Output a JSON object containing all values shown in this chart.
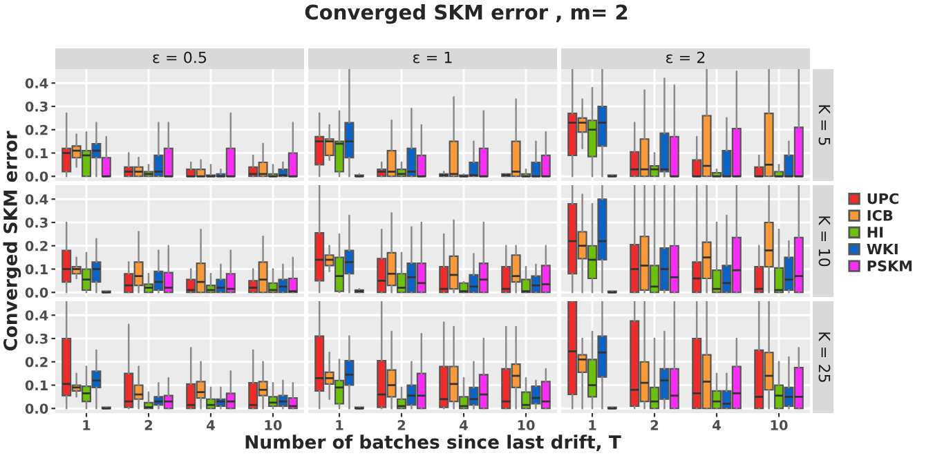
{
  "chart_data": [
    {
      "type": "other",
      "title": "Converged SKM error , m= 2"
    },
    {
      "type": "box",
      "title": "ε = 0.5",
      "legend": "right",
      "categories": [
        "1",
        "2",
        "4",
        "10"
      ],
      "ylim": [
        -0.02,
        0.46
      ],
      "yticks": [
        {
          "value": 0,
          "label": "0.0"
        },
        {
          "value": 0.1,
          "label": "0.1"
        },
        {
          "value": 0.2,
          "label": "0.2"
        },
        {
          "value": 0.3,
          "label": "0.3"
        },
        {
          "value": 0.4,
          "label": "0.4"
        }
      ],
      "grid": true,
      "tick_labels": "y",
      "series": [
        {
          "name": "UPC",
          "color": "#f02b2b",
          "boxes": [
            {
              "low": 0,
              "q1": 0.02,
              "median": 0.1,
              "q3": 0.12,
              "high": 0.27
            },
            {
              "low": 0,
              "q1": 0,
              "median": 0.02,
              "q3": 0.04,
              "high": 0.1
            },
            {
              "low": 0,
              "q1": 0,
              "median": 0,
              "q3": 0.03,
              "high": 0.06
            },
            {
              "low": 0,
              "q1": 0,
              "median": 0.01,
              "q3": 0.04,
              "high": 0.09
            }
          ]
        },
        {
          "name": "ICB",
          "color": "#f99a3a",
          "boxes": [
            {
              "low": 0.04,
              "q1": 0.08,
              "median": 0.11,
              "q3": 0.13,
              "high": 0.18
            },
            {
              "low": 0,
              "q1": 0,
              "median": 0.02,
              "q3": 0.04,
              "high": 0.08
            },
            {
              "low": 0,
              "q1": 0,
              "median": 0,
              "q3": 0.03,
              "high": 0.07
            },
            {
              "low": 0,
              "q1": 0,
              "median": 0.01,
              "q3": 0.06,
              "high": 0.14
            }
          ]
        },
        {
          "name": "HI",
          "color": "#6cc10c",
          "boxes": [
            {
              "low": 0,
              "q1": 0,
              "median": 0.09,
              "q3": 0.11,
              "high": 0.19
            },
            {
              "low": 0,
              "q1": 0,
              "median": 0.01,
              "q3": 0.02,
              "high": 0.05
            },
            {
              "low": 0,
              "q1": 0,
              "median": 0,
              "q3": 0.005,
              "high": 0.05
            },
            {
              "low": 0,
              "q1": 0,
              "median": 0,
              "q3": 0.01,
              "high": 0.05
            }
          ]
        },
        {
          "name": "WKI",
          "color": "#0a64c8",
          "boxes": [
            {
              "low": 0,
              "q1": 0.08,
              "median": 0.11,
              "q3": 0.14,
              "high": 0.23
            },
            {
              "low": 0,
              "q1": 0,
              "median": 0.02,
              "q3": 0.09,
              "high": 0.23
            },
            {
              "low": 0,
              "q1": 0,
              "median": 0,
              "q3": 0.01,
              "high": 0.03
            },
            {
              "low": 0,
              "q1": 0,
              "median": 0.005,
              "q3": 0.03,
              "high": 0.06
            }
          ]
        },
        {
          "name": "PSKM",
          "color": "#fb2cf5",
          "boxes": [
            {
              "low": 0,
              "q1": 0,
              "median": 0,
              "q3": 0.08,
              "high": 0.17
            },
            {
              "low": 0,
              "q1": 0,
              "median": 0,
              "q3": 0.12,
              "high": 0.23
            },
            {
              "low": 0,
              "q1": 0,
              "median": 0,
              "q3": 0.12,
              "high": 0.27
            },
            {
              "low": 0,
              "q1": 0,
              "median": 0,
              "q3": 0.1,
              "high": 0.23
            }
          ]
        }
      ]
    },
    {
      "type": "box",
      "title": "ε = 1",
      "categories": [
        "1",
        "2",
        "4",
        "10"
      ],
      "ylim": [
        -0.02,
        0.46
      ],
      "yticks": [
        0,
        0.1,
        0.2,
        0.3,
        0.4
      ],
      "grid": true,
      "tick_labels": false,
      "series": [
        {
          "color": "#f02b2b",
          "boxes": [
            {
              "low": 0,
              "q1": 0.05,
              "median": 0.15,
              "q3": 0.17,
              "high": 0.27
            },
            {
              "low": 0,
              "q1": 0,
              "median": 0.02,
              "q3": 0.03,
              "high": 0.06
            },
            {
              "low": 0,
              "q1": 0,
              "median": 0.005,
              "q3": 0.01,
              "high": 0.02
            },
            {
              "low": 0,
              "q1": 0,
              "median": 0.005,
              "q3": 0.01,
              "high": 0.01
            }
          ]
        },
        {
          "color": "#f99a3a",
          "boxes": [
            {
              "low": 0.07,
              "q1": 0.09,
              "median": 0.15,
              "q3": 0.16,
              "high": 0.22
            },
            {
              "low": 0,
              "q1": 0,
              "median": 0.02,
              "q3": 0.11,
              "high": 0.24
            },
            {
              "low": 0,
              "q1": 0,
              "median": 0.01,
              "q3": 0.15,
              "high": 0.34
            },
            {
              "low": 0,
              "q1": 0,
              "median": 0.02,
              "q3": 0.15,
              "high": 0.33
            }
          ]
        },
        {
          "color": "#6cc10c",
          "boxes": [
            {
              "low": 0,
              "q1": 0.02,
              "median": 0.14,
              "q3": 0.15,
              "high": 0.28
            },
            {
              "low": 0,
              "q1": 0,
              "median": 0.01,
              "q3": 0.03,
              "high": 0.06
            },
            {
              "low": 0,
              "q1": 0,
              "median": 0,
              "q3": 0.005,
              "high": 0.01
            },
            {
              "low": 0,
              "q1": 0,
              "median": 0,
              "q3": 0.01,
              "high": 0.03
            }
          ]
        },
        {
          "color": "#0a64c8",
          "boxes": [
            {
              "low": 0,
              "q1": 0.08,
              "median": 0.15,
              "q3": 0.23,
              "high": 0.46
            },
            {
              "low": 0,
              "q1": 0,
              "median": 0.02,
              "q3": 0.12,
              "high": 0.29
            },
            {
              "low": 0,
              "q1": 0,
              "median": 0.005,
              "q3": 0.06,
              "high": 0.15
            },
            {
              "low": 0,
              "q1": 0,
              "median": 0,
              "q3": 0.06,
              "high": 0.15
            }
          ]
        },
        {
          "color": "#fb2cf5",
          "boxes": [
            {
              "low": 0,
              "q1": 0,
              "median": 0,
              "q3": 0.005,
              "high": 0.01
            },
            {
              "low": 0,
              "q1": 0,
              "median": 0,
              "q3": 0.09,
              "high": 0.22
            },
            {
              "low": 0,
              "q1": 0,
              "median": 0,
              "q3": 0.12,
              "high": 0.28
            },
            {
              "low": 0,
              "q1": 0,
              "median": 0,
              "q3": 0.09,
              "high": 0.19
            }
          ]
        }
      ]
    },
    {
      "type": "box",
      "title": "ε = 2",
      "y2label": "K = 5",
      "categories": [
        "1",
        "2",
        "4",
        "10"
      ],
      "ylim": [
        -0.02,
        0.46
      ],
      "yticks": [
        0,
        0.1,
        0.2,
        0.3,
        0.4
      ],
      "grid": true,
      "tick_labels": false,
      "series": [
        {
          "color": "#f02b2b",
          "boxes": [
            {
              "low": 0,
              "q1": 0.09,
              "median": 0.23,
              "q3": 0.27,
              "high": 0.46
            },
            {
              "low": 0,
              "q1": 0,
              "median": 0.03,
              "q3": 0.105,
              "high": 0.23
            },
            {
              "low": 0,
              "q1": 0,
              "median": 0,
              "q3": 0.07,
              "high": 0.17
            },
            {
              "low": 0,
              "q1": 0,
              "median": 0,
              "q3": 0.04,
              "high": 0.09
            }
          ]
        },
        {
          "color": "#f99a3a",
          "boxes": [
            {
              "low": 0.12,
              "q1": 0.19,
              "median": 0.23,
              "q3": 0.25,
              "high": 0.33
            },
            {
              "low": 0,
              "q1": 0,
              "median": 0.03,
              "q3": 0.16,
              "high": 0.37
            },
            {
              "low": 0,
              "q1": 0,
              "median": 0.045,
              "q3": 0.26,
              "high": 0.46
            },
            {
              "low": 0,
              "q1": 0,
              "median": 0.05,
              "q3": 0.27,
              "high": 0.46
            }
          ]
        },
        {
          "color": "#6cc10c",
          "boxes": [
            {
              "low": 0,
              "q1": 0.085,
              "median": 0.2,
              "q3": 0.24,
              "high": 0.38
            },
            {
              "low": 0,
              "q1": 0,
              "median": 0.03,
              "q3": 0.045,
              "high": 0.1
            },
            {
              "low": 0,
              "q1": 0,
              "median": 0,
              "q3": 0.015,
              "high": 0.03
            },
            {
              "low": 0,
              "q1": 0,
              "median": 0,
              "q3": 0.02,
              "high": 0.05
            }
          ]
        },
        {
          "color": "#0a64c8",
          "boxes": [
            {
              "low": 0,
              "q1": 0.13,
              "median": 0.23,
              "q3": 0.3,
              "high": 0.46
            },
            {
              "low": 0,
              "q1": 0.02,
              "median": 0.03,
              "q3": 0.185,
              "high": 0.42
            },
            {
              "low": 0,
              "q1": 0,
              "median": 0,
              "q3": 0.11,
              "high": 0.25
            },
            {
              "low": 0,
              "q1": 0,
              "median": 0,
              "q3": 0.09,
              "high": 0.15
            }
          ]
        },
        {
          "color": "#fb2cf5",
          "boxes": [
            {
              "low": 0,
              "q1": 0,
              "median": 0,
              "q3": 0.005,
              "high": 0.005
            },
            {
              "low": 0,
              "q1": 0,
              "median": 0,
              "q3": 0.17,
              "high": 0.39
            },
            {
              "low": 0,
              "q1": 0,
              "median": 0,
              "q3": 0.205,
              "high": 0.45
            },
            {
              "low": 0,
              "q1": 0,
              "median": 0,
              "q3": 0.21,
              "high": 0.46
            }
          ]
        }
      ]
    },
    {
      "type": "box",
      "ylabel": "Converged SKM error",
      "categories": [
        "1",
        "2",
        "4",
        "10"
      ],
      "ylim": [
        -0.02,
        0.46
      ],
      "yticks": [
        {
          "value": 0,
          "label": "0.0"
        },
        {
          "value": 0.1,
          "label": "0.1"
        },
        {
          "value": 0.2,
          "label": "0.2"
        },
        {
          "value": 0.3,
          "label": "0.3"
        },
        {
          "value": 0.4,
          "label": "0.4"
        }
      ],
      "grid": true,
      "tick_labels": "y",
      "series": [
        {
          "color": "#f02b2b",
          "boxes": [
            {
              "low": 0,
              "q1": 0.045,
              "median": 0.1,
              "q3": 0.18,
              "high": 0.3
            },
            {
              "low": 0,
              "q1": 0,
              "median": 0.03,
              "q3": 0.08,
              "high": 0.13
            },
            {
              "low": 0,
              "q1": 0,
              "median": 0.01,
              "q3": 0.055,
              "high": 0.1
            },
            {
              "low": 0,
              "q1": 0,
              "median": 0.02,
              "q3": 0.05,
              "high": 0.1
            }
          ]
        },
        {
          "color": "#f99a3a",
          "boxes": [
            {
              "low": 0.06,
              "q1": 0.08,
              "median": 0.1,
              "q3": 0.11,
              "high": 0.15
            },
            {
              "low": 0,
              "q1": 0.03,
              "median": 0.07,
              "q3": 0.13,
              "high": 0.26
            },
            {
              "low": 0,
              "q1": 0,
              "median": 0.045,
              "q3": 0.125,
              "high": 0.27
            },
            {
              "low": 0,
              "q1": 0,
              "median": 0.055,
              "q3": 0.13,
              "high": 0.24
            }
          ]
        },
        {
          "color": "#6cc10c",
          "boxes": [
            {
              "low": 0,
              "q1": 0.01,
              "median": 0.055,
              "q3": 0.1,
              "high": 0.17
            },
            {
              "low": 0,
              "q1": 0,
              "median": 0.02,
              "q3": 0.035,
              "high": 0.08
            },
            {
              "low": 0,
              "q1": 0,
              "median": 0.01,
              "q3": 0.03,
              "high": 0.08
            },
            {
              "low": 0,
              "q1": 0,
              "median": 0.01,
              "q3": 0.04,
              "high": 0.1
            }
          ]
        },
        {
          "color": "#0a64c8",
          "boxes": [
            {
              "low": 0,
              "q1": 0.045,
              "median": 0.1,
              "q3": 0.13,
              "high": 0.23
            },
            {
              "low": 0,
              "q1": 0.01,
              "median": 0.045,
              "q3": 0.09,
              "high": 0.18
            },
            {
              "low": 0,
              "q1": 0,
              "median": 0.02,
              "q3": 0.055,
              "high": 0.12
            },
            {
              "low": 0,
              "q1": 0,
              "median": 0.025,
              "q3": 0.055,
              "high": 0.12
            }
          ]
        },
        {
          "color": "#fb2cf5",
          "boxes": [
            {
              "low": 0,
              "q1": 0,
              "median": 0,
              "q3": 0.005,
              "high": 0.005
            },
            {
              "low": 0,
              "q1": 0,
              "median": 0.02,
              "q3": 0.085,
              "high": 0.2
            },
            {
              "low": 0,
              "q1": 0,
              "median": 0.015,
              "q3": 0.08,
              "high": 0.18
            },
            {
              "low": 0,
              "q1": 0,
              "median": 0.005,
              "q3": 0.06,
              "high": 0.15
            }
          ]
        }
      ]
    },
    {
      "type": "box",
      "categories": [
        "1",
        "2",
        "4",
        "10"
      ],
      "ylim": [
        -0.02,
        0.46
      ],
      "yticks": [
        0,
        0.1,
        0.2,
        0.3,
        0.4
      ],
      "grid": true,
      "tick_labels": false,
      "series": [
        {
          "color": "#f02b2b",
          "boxes": [
            {
              "low": 0,
              "q1": 0.05,
              "median": 0.14,
              "q3": 0.255,
              "high": 0.46
            },
            {
              "low": 0,
              "q1": 0,
              "median": 0.05,
              "q3": 0.145,
              "high": 0.27
            },
            {
              "low": 0,
              "q1": 0,
              "median": 0.015,
              "q3": 0.11,
              "high": 0.25
            },
            {
              "low": 0,
              "q1": 0,
              "median": 0.015,
              "q3": 0.11,
              "high": 0.2
            }
          ]
        },
        {
          "color": "#f99a3a",
          "boxes": [
            {
              "low": 0.09,
              "q1": 0.115,
              "median": 0.14,
              "q3": 0.16,
              "high": 0.2
            },
            {
              "low": 0,
              "q1": 0.03,
              "median": 0.08,
              "q3": 0.17,
              "high": 0.34
            },
            {
              "low": 0,
              "q1": 0.015,
              "median": 0.075,
              "q3": 0.155,
              "high": 0.31
            },
            {
              "low": 0,
              "q1": 0.045,
              "median": 0.07,
              "q3": 0.16,
              "high": 0.2
            }
          ]
        },
        {
          "color": "#6cc10c",
          "boxes": [
            {
              "low": 0,
              "q1": 0.005,
              "median": 0.07,
              "q3": 0.15,
              "high": 0.25
            },
            {
              "low": 0,
              "q1": 0,
              "median": 0.02,
              "q3": 0.08,
              "high": 0.17
            },
            {
              "low": 0,
              "q1": 0,
              "median": 0.005,
              "q3": 0.04,
              "high": 0.045
            },
            {
              "low": 0,
              "q1": 0,
              "median": 0.005,
              "q3": 0.055,
              "high": 0.11
            }
          ]
        },
        {
          "color": "#0a64c8",
          "boxes": [
            {
              "low": 0,
              "q1": 0.08,
              "median": 0.13,
              "q3": 0.18,
              "high": 0.33
            },
            {
              "low": 0,
              "q1": 0,
              "median": 0.065,
              "q3": 0.125,
              "high": 0.28
            },
            {
              "low": 0,
              "q1": 0,
              "median": 0.025,
              "q3": 0.075,
              "high": 0.165
            },
            {
              "low": 0,
              "q1": 0,
              "median": 0.03,
              "q3": 0.07,
              "high": 0.12
            }
          ]
        },
        {
          "color": "#fb2cf5",
          "boxes": [
            {
              "low": 0,
              "q1": 0,
              "median": 0.005,
              "q3": 0.01,
              "high": 0.015
            },
            {
              "low": 0,
              "q1": 0,
              "median": 0.04,
              "q3": 0.125,
              "high": 0.3
            },
            {
              "low": 0,
              "q1": 0,
              "median": 0.055,
              "q3": 0.125,
              "high": 0.3
            },
            {
              "low": 0,
              "q1": 0,
              "median": 0.035,
              "q3": 0.115,
              "high": 0.2
            }
          ]
        }
      ]
    },
    {
      "type": "box",
      "y2label": "K = 10",
      "categories": [
        "1",
        "2",
        "4",
        "10"
      ],
      "ylim": [
        -0.02,
        0.46
      ],
      "yticks": [
        0,
        0.1,
        0.2,
        0.3,
        0.4
      ],
      "grid": true,
      "tick_labels": false,
      "series": [
        {
          "color": "#f02b2b",
          "boxes": [
            {
              "low": 0,
              "q1": 0.08,
              "median": 0.22,
              "q3": 0.38,
              "high": 0.46
            },
            {
              "low": 0,
              "q1": 0,
              "median": 0.1,
              "q3": 0.205,
              "high": 0.46
            },
            {
              "low": 0,
              "q1": 0,
              "median": 0.06,
              "q3": 0.13,
              "high": 0.46
            },
            {
              "low": 0,
              "q1": 0,
              "median": 0.015,
              "q3": 0.11,
              "high": 0.2
            }
          ]
        },
        {
          "color": "#f99a3a",
          "boxes": [
            {
              "low": 0,
              "q1": 0.145,
              "median": 0.2,
              "q3": 0.26,
              "high": 0.42
            },
            {
              "low": 0,
              "q1": 0.01,
              "median": 0.115,
              "q3": 0.24,
              "high": 0.46
            },
            {
              "low": 0,
              "q1": 0.06,
              "median": 0.15,
              "q3": 0.215,
              "high": 0.46
            },
            {
              "low": 0,
              "q1": 0.11,
              "median": 0.18,
              "q3": 0.3,
              "high": 0.46
            }
          ]
        },
        {
          "color": "#6cc10c",
          "boxes": [
            {
              "low": 0,
              "q1": 0.06,
              "median": 0.14,
              "q3": 0.2,
              "high": 0.38
            },
            {
              "low": 0,
              "q1": 0,
              "median": 0.025,
              "q3": 0.115,
              "high": 0.46
            },
            {
              "low": 0,
              "q1": 0,
              "median": 0.015,
              "q3": 0.095,
              "high": 0.3
            },
            {
              "low": 0,
              "q1": 0,
              "median": 0.01,
              "q3": 0.105,
              "high": 0.27
            }
          ]
        },
        {
          "color": "#0a64c8",
          "boxes": [
            {
              "low": 0,
              "q1": 0.14,
              "median": 0.22,
              "q3": 0.4,
              "high": 0.46
            },
            {
              "low": 0,
              "q1": 0.01,
              "median": 0.1,
              "q3": 0.19,
              "high": 0.46
            },
            {
              "low": 0,
              "q1": 0,
              "median": 0.04,
              "q3": 0.115,
              "high": 0.33
            },
            {
              "low": 0,
              "q1": 0.01,
              "median": 0.055,
              "q3": 0.15,
              "high": 0.22
            }
          ]
        },
        {
          "color": "#fb2cf5",
          "boxes": [
            {
              "low": 0,
              "q1": 0,
              "median": 0,
              "q3": 0.005,
              "high": 0.005
            },
            {
              "low": 0,
              "q1": 0,
              "median": 0.065,
              "q3": 0.2,
              "high": 0.46
            },
            {
              "low": 0,
              "q1": 0,
              "median": 0.095,
              "q3": 0.235,
              "high": 0.46
            },
            {
              "low": 0,
              "q1": 0,
              "median": 0.07,
              "q3": 0.235,
              "high": 0.46
            }
          ]
        }
      ]
    },
    {
      "type": "box",
      "categories": [
        "1",
        "2",
        "4",
        "10"
      ],
      "ylim": [
        -0.02,
        0.46
      ],
      "yticks": [
        {
          "value": 0,
          "label": "0.0"
        },
        {
          "value": 0.1,
          "label": "0.1"
        },
        {
          "value": 0.2,
          "label": "0.2"
        },
        {
          "value": 0.3,
          "label": "0.3"
        },
        {
          "value": 0.4,
          "label": "0.4"
        }
      ],
      "grid": true,
      "series": [
        {
          "color": "#f02b2b",
          "boxes": [
            {
              "low": 0,
              "q1": 0.055,
              "median": 0.105,
              "q3": 0.3,
              "high": 0.46
            },
            {
              "low": 0,
              "q1": 0.005,
              "median": 0.03,
              "q3": 0.15,
              "high": 0.36
            },
            {
              "low": 0,
              "q1": 0,
              "median": 0.015,
              "q3": 0.105,
              "high": 0.26
            },
            {
              "low": 0,
              "q1": 0,
              "median": 0.015,
              "q3": 0.11,
              "high": 0.25
            }
          ]
        },
        {
          "color": "#f99a3a",
          "boxes": [
            {
              "low": 0.05,
              "q1": 0.075,
              "median": 0.09,
              "q3": 0.1,
              "high": 0.15
            },
            {
              "low": 0,
              "q1": 0.04,
              "median": 0.06,
              "q3": 0.1,
              "high": 0.18
            },
            {
              "low": 0,
              "q1": 0.045,
              "median": 0.07,
              "q3": 0.115,
              "high": 0.2
            },
            {
              "low": 0,
              "q1": 0.055,
              "median": 0.08,
              "q3": 0.115,
              "high": 0.2
            }
          ]
        },
        {
          "color": "#6cc10c",
          "boxes": [
            {
              "low": 0,
              "q1": 0.03,
              "median": 0.065,
              "q3": 0.095,
              "high": 0.18
            },
            {
              "low": 0,
              "q1": 0,
              "median": 0.005,
              "q3": 0.025,
              "high": 0.07
            },
            {
              "low": 0,
              "q1": 0,
              "median": 0.015,
              "q3": 0.04,
              "high": 0.09
            },
            {
              "low": 0,
              "q1": 0.01,
              "median": 0.025,
              "q3": 0.05,
              "high": 0.11
            }
          ]
        },
        {
          "color": "#0a64c8",
          "boxes": [
            {
              "low": 0,
              "q1": 0.09,
              "median": 0.12,
              "q3": 0.16,
              "high": 0.25
            },
            {
              "low": 0,
              "q1": 0.015,
              "median": 0.03,
              "q3": 0.05,
              "high": 0.11
            },
            {
              "low": 0,
              "q1": 0.01,
              "median": 0.03,
              "q3": 0.04,
              "high": 0.09
            },
            {
              "low": 0,
              "q1": 0.01,
              "median": 0.03,
              "q3": 0.055,
              "high": 0.12
            }
          ]
        },
        {
          "color": "#fb2cf5",
          "boxes": [
            {
              "low": 0,
              "q1": 0,
              "median": 0,
              "q3": 0.005,
              "high": 0.005
            },
            {
              "low": 0,
              "q1": 0,
              "median": 0.03,
              "q3": 0.055,
              "high": 0.13
            },
            {
              "low": 0,
              "q1": 0,
              "median": 0.03,
              "q3": 0.065,
              "high": 0.16
            },
            {
              "low": 0,
              "q1": 0,
              "median": 0.01,
              "q3": 0.045,
              "high": 0.11
            }
          ]
        }
      ]
    },
    {
      "type": "box",
      "xlabel": "Number of batches since last drift, T",
      "categories": [
        "1",
        "2",
        "4",
        "10"
      ],
      "ylim": [
        -0.02,
        0.46
      ],
      "yticks": [
        0,
        0.1,
        0.2,
        0.3,
        0.4
      ],
      "grid": true,
      "tick_labels": "x",
      "series": [
        {
          "color": "#f02b2b",
          "boxes": [
            {
              "low": 0,
              "q1": 0.075,
              "median": 0.13,
              "q3": 0.31,
              "high": 0.46
            },
            {
              "low": 0,
              "q1": 0.005,
              "median": 0.06,
              "q3": 0.205,
              "high": 0.46
            },
            {
              "low": 0,
              "q1": 0.005,
              "median": 0.04,
              "q3": 0.18,
              "high": 0.37
            },
            {
              "low": 0,
              "q1": 0,
              "median": 0.03,
              "q3": 0.17,
              "high": 0.35
            }
          ]
        },
        {
          "color": "#f99a3a",
          "boxes": [
            {
              "low": 0.04,
              "q1": 0.105,
              "median": 0.13,
              "q3": 0.155,
              "high": 0.24
            },
            {
              "low": 0,
              "q1": 0.05,
              "median": 0.1,
              "q3": 0.165,
              "high": 0.33
            },
            {
              "low": 0,
              "q1": 0.03,
              "median": 0.105,
              "q3": 0.18,
              "high": 0.35
            },
            {
              "low": 0,
              "q1": 0.09,
              "median": 0.14,
              "q3": 0.19,
              "high": 0.35
            }
          ]
        },
        {
          "color": "#6cc10c",
          "boxes": [
            {
              "low": 0,
              "q1": 0.02,
              "median": 0.09,
              "q3": 0.12,
              "high": 0.21
            },
            {
              "low": 0,
              "q1": 0,
              "median": 0.01,
              "q3": 0.04,
              "high": 0.09
            },
            {
              "low": 0,
              "q1": 0,
              "median": 0.01,
              "q3": 0.05,
              "high": 0.13
            },
            {
              "low": 0,
              "q1": 0,
              "median": 0.015,
              "q3": 0.07,
              "high": 0.13
            }
          ]
        },
        {
          "color": "#0a64c8",
          "boxes": [
            {
              "low": 0,
              "q1": 0.1,
              "median": 0.145,
              "q3": 0.205,
              "high": 0.31
            },
            {
              "low": 0,
              "q1": 0.015,
              "median": 0.055,
              "q3": 0.1,
              "high": 0.2
            },
            {
              "low": 0,
              "q1": 0.015,
              "median": 0.04,
              "q3": 0.09,
              "high": 0.2
            },
            {
              "low": 0,
              "q1": 0.02,
              "median": 0.045,
              "q3": 0.095,
              "high": 0.12
            }
          ]
        },
        {
          "color": "#fb2cf5",
          "boxes": [
            {
              "low": 0,
              "q1": 0,
              "median": 0,
              "q3": 0.005,
              "high": 0.005
            },
            {
              "low": 0,
              "q1": 0,
              "median": 0.055,
              "q3": 0.15,
              "high": 0.32
            },
            {
              "low": 0,
              "q1": 0,
              "median": 0.06,
              "q3": 0.145,
              "high": 0.3
            },
            {
              "low": 0,
              "q1": 0,
              "median": 0.03,
              "q3": 0.115,
              "high": 0.17
            }
          ]
        }
      ]
    },
    {
      "type": "box",
      "y2label": "K = 25",
      "categories": [
        "1",
        "2",
        "4",
        "10"
      ],
      "ylim": [
        -0.02,
        0.46
      ],
      "yticks": [
        0,
        0.1,
        0.2,
        0.3,
        0.4
      ],
      "grid": true,
      "tick_labels": "x",
      "series": [
        {
          "color": "#f02b2b",
          "boxes": [
            {
              "low": 0,
              "q1": 0.06,
              "median": 0.245,
              "q3": 0.46,
              "high": 0.46
            },
            {
              "low": 0,
              "q1": 0.01,
              "median": 0.08,
              "q3": 0.375,
              "high": 0.46
            },
            {
              "low": 0,
              "q1": 0,
              "median": 0.065,
              "q3": 0.3,
              "high": 0.46
            },
            {
              "low": 0,
              "q1": 0,
              "median": 0.05,
              "q3": 0.25,
              "high": 0.46
            }
          ]
        },
        {
          "color": "#f99a3a",
          "boxes": [
            {
              "low": 0,
              "q1": 0.155,
              "median": 0.21,
              "q3": 0.23,
              "high": 0.3
            },
            {
              "low": 0,
              "q1": 0.03,
              "median": 0.11,
              "q3": 0.2,
              "high": 0.46
            },
            {
              "low": 0,
              "q1": 0,
              "median": 0.115,
              "q3": 0.23,
              "high": 0.46
            },
            {
              "low": 0,
              "q1": 0.08,
              "median": 0.14,
              "q3": 0.24,
              "high": 0.46
            }
          ]
        },
        {
          "color": "#6cc10c",
          "boxes": [
            {
              "low": 0,
              "q1": 0.05,
              "median": 0.1,
              "q3": 0.21,
              "high": 0.33
            },
            {
              "low": 0,
              "q1": 0,
              "median": 0.03,
              "q3": 0.09,
              "high": 0.3
            },
            {
              "low": 0,
              "q1": 0,
              "median": 0.03,
              "q3": 0.075,
              "high": 0.15
            },
            {
              "low": 0,
              "q1": 0,
              "median": 0.055,
              "q3": 0.1,
              "high": 0.2
            }
          ]
        },
        {
          "color": "#0a64c8",
          "boxes": [
            {
              "low": 0,
              "q1": 0.135,
              "median": 0.24,
              "q3": 0.31,
              "high": 0.46
            },
            {
              "low": 0,
              "q1": 0.04,
              "median": 0.12,
              "q3": 0.17,
              "high": 0.33
            },
            {
              "low": 0,
              "q1": 0,
              "median": 0.02,
              "q3": 0.075,
              "high": 0.15
            },
            {
              "low": 0,
              "q1": 0.01,
              "median": 0.05,
              "q3": 0.09,
              "high": 0.22
            }
          ]
        },
        {
          "color": "#fb2cf5",
          "boxes": [
            {
              "low": 0,
              "q1": 0,
              "median": 0,
              "q3": 0.005,
              "high": 0.005
            },
            {
              "low": 0,
              "q1": 0,
              "median": 0.055,
              "q3": 0.17,
              "high": 0.46
            },
            {
              "low": 0,
              "q1": 0,
              "median": 0.065,
              "q3": 0.18,
              "high": 0.3
            },
            {
              "low": 0,
              "q1": 0,
              "median": 0.05,
              "q3": 0.175,
              "high": 0.26
            }
          ]
        }
      ]
    }
  ]
}
